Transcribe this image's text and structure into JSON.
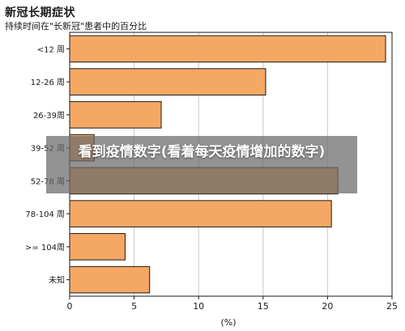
{
  "chart_data": {
    "type": "bar",
    "orientation": "horizontal",
    "title": "新冠长期症状",
    "subtitle": "持续时间在\"长新冠\"患者中的百分比",
    "categories": [
      "<12 周",
      "12-26 周",
      "26-39周",
      "39-52 周",
      "52-78 周",
      "78-104 周",
      ">= 104周",
      "未知"
    ],
    "values": [
      24.5,
      15.2,
      7.1,
      1.9,
      20.8,
      20.3,
      4.3,
      6.2
    ],
    "xlabel": "(%)",
    "xlim": [
      0,
      25
    ],
    "xticks": [
      0,
      5,
      10,
      15,
      20,
      25
    ],
    "grid": true,
    "bar_color": "#f4a864",
    "bar_edge_color": "#1a1a1a"
  },
  "overlay": {
    "text": "看到疫情数字(看着每天疫情增加的数字)"
  }
}
